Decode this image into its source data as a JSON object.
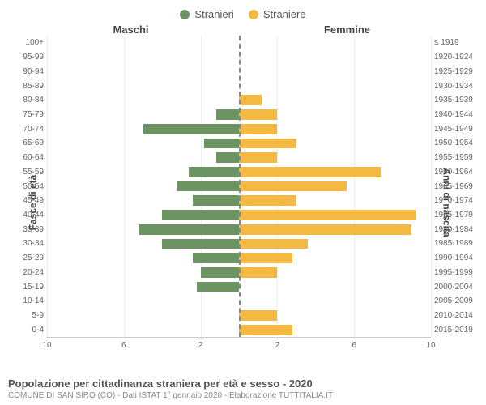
{
  "legend": {
    "male": {
      "label": "Stranieri",
      "color": "#6b9462"
    },
    "female": {
      "label": "Straniere",
      "color": "#f4b942"
    }
  },
  "header": {
    "left_title": "Maschi",
    "right_title": "Femmine"
  },
  "axis": {
    "y_left_title": "Fasce di età",
    "y_right_title": "Anni di nascita",
    "x_max": 10,
    "x_ticks_left": [
      10,
      6,
      2
    ],
    "x_ticks_right": [
      2,
      6,
      10
    ]
  },
  "colors": {
    "male_bar": "#6b9462",
    "female_bar": "#f4b942",
    "grid": "#eeeeee",
    "centerline": "#888888",
    "background": "#ffffff"
  },
  "rows": [
    {
      "age": "100+",
      "birth": "≤ 1919",
      "male": 0,
      "female": 0
    },
    {
      "age": "95-99",
      "birth": "1920-1924",
      "male": 0,
      "female": 0
    },
    {
      "age": "90-94",
      "birth": "1925-1929",
      "male": 0,
      "female": 0
    },
    {
      "age": "85-89",
      "birth": "1930-1934",
      "male": 0,
      "female": 0
    },
    {
      "age": "80-84",
      "birth": "1935-1939",
      "male": 0,
      "female": 1.2
    },
    {
      "age": "75-79",
      "birth": "1940-1944",
      "male": 1.2,
      "female": 2.0
    },
    {
      "age": "70-74",
      "birth": "1945-1949",
      "male": 5.0,
      "female": 2.0
    },
    {
      "age": "65-69",
      "birth": "1950-1954",
      "male": 1.8,
      "female": 3.0
    },
    {
      "age": "60-64",
      "birth": "1955-1959",
      "male": 1.2,
      "female": 2.0
    },
    {
      "age": "55-59",
      "birth": "1960-1964",
      "male": 2.6,
      "female": 7.4
    },
    {
      "age": "50-54",
      "birth": "1965-1969",
      "male": 3.2,
      "female": 5.6
    },
    {
      "age": "45-49",
      "birth": "1970-1974",
      "male": 2.4,
      "female": 3.0
    },
    {
      "age": "40-44",
      "birth": "1975-1979",
      "male": 4.0,
      "female": 9.2
    },
    {
      "age": "35-39",
      "birth": "1980-1984",
      "male": 5.2,
      "female": 9.0
    },
    {
      "age": "30-34",
      "birth": "1985-1989",
      "male": 4.0,
      "female": 3.6
    },
    {
      "age": "25-29",
      "birth": "1990-1994",
      "male": 2.4,
      "female": 2.8
    },
    {
      "age": "20-24",
      "birth": "1995-1999",
      "male": 2.0,
      "female": 2.0
    },
    {
      "age": "15-19",
      "birth": "2000-2004",
      "male": 2.2,
      "female": 0
    },
    {
      "age": "10-14",
      "birth": "2005-2009",
      "male": 0,
      "female": 0
    },
    {
      "age": "5-9",
      "birth": "2010-2014",
      "male": 0,
      "female": 2.0
    },
    {
      "age": "0-4",
      "birth": "2015-2019",
      "male": 0,
      "female": 2.8
    }
  ],
  "footer": {
    "title": "Popolazione per cittadinanza straniera per età e sesso - 2020",
    "subtitle": "COMUNE DI SAN SIRO (CO) - Dati ISTAT 1° gennaio 2020 - Elaborazione TUTTITALIA.IT"
  }
}
